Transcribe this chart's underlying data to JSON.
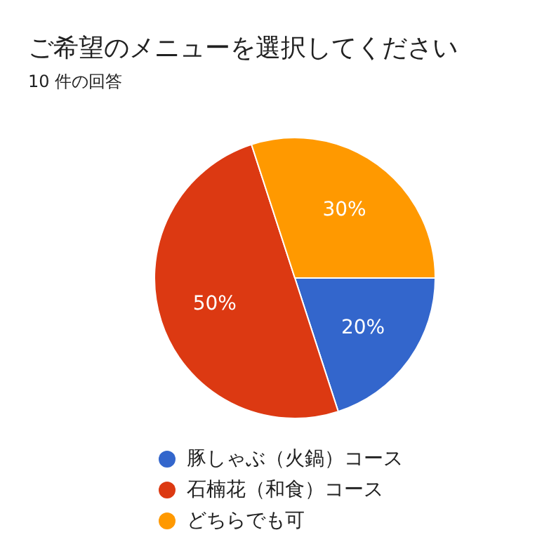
{
  "chart_data": {
    "type": "pie",
    "title": "ご希望のメニューを選択してください",
    "subtitle": "10 件の回答",
    "categories": [
      "豚しゃぶ（火鍋）コース",
      "石楠花（和食）コース",
      "どちらでも可"
    ],
    "values": [
      20,
      50,
      30
    ],
    "colors": [
      "#3366cc",
      "#dc3912",
      "#ff9900"
    ],
    "value_labels": [
      "20%",
      "50%",
      "30%"
    ],
    "legend": "bottom left"
  }
}
